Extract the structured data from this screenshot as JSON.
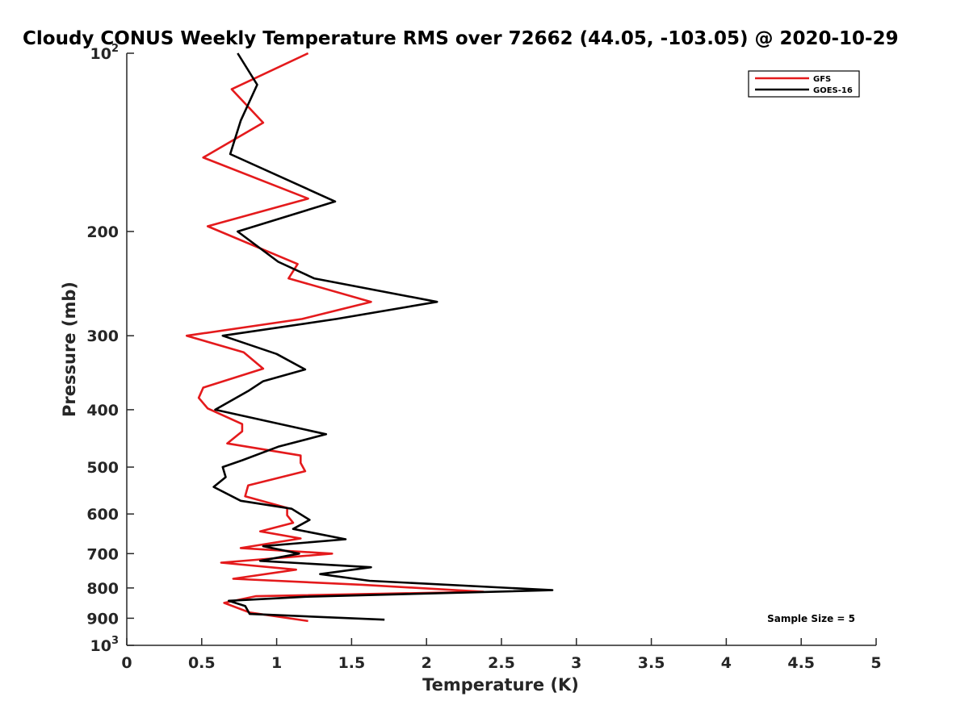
{
  "chart_data": {
    "type": "line",
    "title": "Cloudy CONUS Weekly Temperature RMS over 72662 (44.05, -103.05) @ 2020-10-29",
    "xlabel": "Temperature (K)",
    "ylabel": "Pressure (mb)",
    "xlim": [
      0,
      5
    ],
    "ylim": [
      100,
      1000
    ],
    "y_scale": "log",
    "y_reversed": true,
    "x_ticks": [
      "0",
      "0.5",
      "1",
      "1.5",
      "2",
      "2.5",
      "3",
      "3.5",
      "4",
      "4.5",
      "5"
    ],
    "y_ticks": [
      {
        "value": 100,
        "base": "10",
        "exp": "2"
      },
      {
        "value": 200,
        "label": "200"
      },
      {
        "value": 300,
        "label": "300"
      },
      {
        "value": 400,
        "label": "400"
      },
      {
        "value": 500,
        "label": "500"
      },
      {
        "value": 600,
        "label": "600"
      },
      {
        "value": 700,
        "label": "700"
      },
      {
        "value": 800,
        "label": "800"
      },
      {
        "value": 900,
        "label": "900"
      },
      {
        "value": 1000,
        "base": "10",
        "exp": "3"
      }
    ],
    "legend_position": "top-right",
    "annotation": "Sample Size = 5",
    "series": [
      {
        "name": "GFS",
        "color": "#e41a1c",
        "points": [
          [
            1.21,
            100
          ],
          [
            0.7,
            115
          ],
          [
            0.91,
            131
          ],
          [
            0.51,
            150
          ],
          [
            1.21,
            176
          ],
          [
            0.54,
            196
          ],
          [
            1.14,
            227
          ],
          [
            1.08,
            240
          ],
          [
            1.63,
            263
          ],
          [
            1.17,
            281
          ],
          [
            0.4,
            300
          ],
          [
            0.78,
            320
          ],
          [
            0.91,
            341
          ],
          [
            0.51,
            367
          ],
          [
            0.48,
            382
          ],
          [
            0.54,
            398
          ],
          [
            0.77,
            423
          ],
          [
            0.77,
            435
          ],
          [
            0.67,
            456
          ],
          [
            1.16,
            478
          ],
          [
            1.16,
            492
          ],
          [
            1.19,
            508
          ],
          [
            0.81,
            537
          ],
          [
            0.79,
            560
          ],
          [
            1.07,
            586
          ],
          [
            1.07,
            603
          ],
          [
            1.11,
            621
          ],
          [
            0.89,
            642
          ],
          [
            1.16,
            660
          ],
          [
            0.76,
            685
          ],
          [
            1.37,
            700
          ],
          [
            0.63,
            725
          ],
          [
            1.13,
            745
          ],
          [
            0.71,
            772
          ],
          [
            1.57,
            790
          ],
          [
            2.38,
            812
          ],
          [
            0.86,
            826
          ],
          [
            0.65,
            848
          ],
          [
            0.82,
            880
          ],
          [
            1.21,
            910
          ]
        ]
      },
      {
        "name": "GOES-16",
        "color": "#000000",
        "points": [
          [
            0.74,
            100
          ],
          [
            0.87,
            113
          ],
          [
            0.76,
            130
          ],
          [
            0.69,
            148
          ],
          [
            1.39,
            178
          ],
          [
            0.74,
            200
          ],
          [
            1.01,
            225
          ],
          [
            1.25,
            240
          ],
          [
            2.07,
            263
          ],
          [
            1.4,
            281
          ],
          [
            0.64,
            300
          ],
          [
            1.0,
            322
          ],
          [
            1.19,
            342
          ],
          [
            0.91,
            358
          ],
          [
            0.81,
            372
          ],
          [
            0.59,
            400
          ],
          [
            1.33,
            440
          ],
          [
            1.01,
            462
          ],
          [
            0.77,
            487
          ],
          [
            0.64,
            500
          ],
          [
            0.66,
            520
          ],
          [
            0.58,
            540
          ],
          [
            0.76,
            570
          ],
          [
            1.1,
            588
          ],
          [
            1.22,
            614
          ],
          [
            1.11,
            636
          ],
          [
            1.46,
            662
          ],
          [
            0.91,
            680
          ],
          [
            1.15,
            700
          ],
          [
            0.89,
            720
          ],
          [
            1.63,
            738
          ],
          [
            1.29,
            758
          ],
          [
            1.62,
            778
          ],
          [
            2.84,
            807
          ],
          [
            1.19,
            828
          ],
          [
            0.68,
            841
          ],
          [
            0.79,
            858
          ],
          [
            0.82,
            885
          ],
          [
            1.72,
            905
          ]
        ]
      }
    ]
  }
}
